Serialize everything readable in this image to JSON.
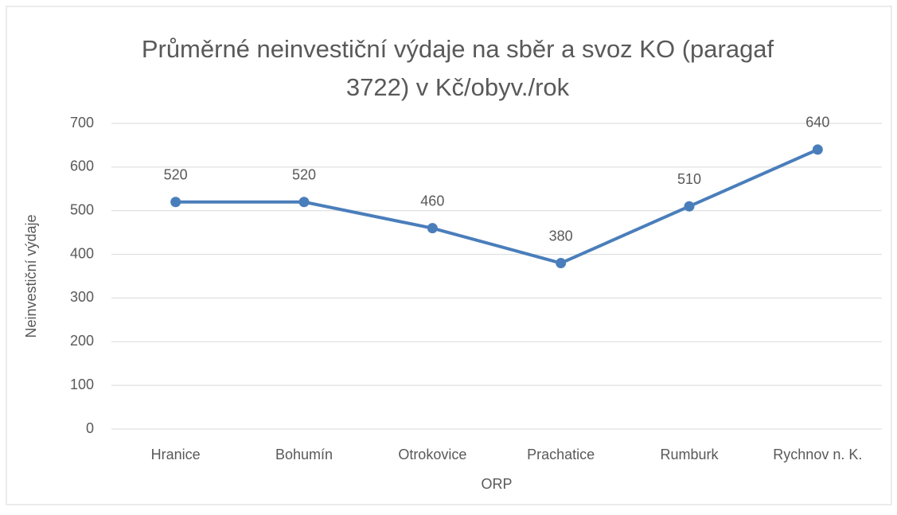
{
  "chart_data": {
    "type": "line",
    "title": "Průměrné neinvestiční výdaje na sběr a svoz KO (paragaf 3722) v Kč/obyv./rok",
    "x_label": "ORP",
    "y_label": "Neinvestiční výdaje",
    "categories": [
      "Hranice",
      "Bohumín",
      "Otrokovice",
      "Prachatice",
      "Rumburk",
      "Rychnov n. K."
    ],
    "series": [
      {
        "name": "Neinvestiční výdaje",
        "color": "#4a7ebb",
        "values": [
          520,
          520,
          460,
          380,
          510,
          640
        ]
      }
    ],
    "ylim": [
      0,
      700
    ],
    "yticks": [
      0,
      100,
      200,
      300,
      400,
      500,
      600,
      700
    ],
    "grid": true
  }
}
